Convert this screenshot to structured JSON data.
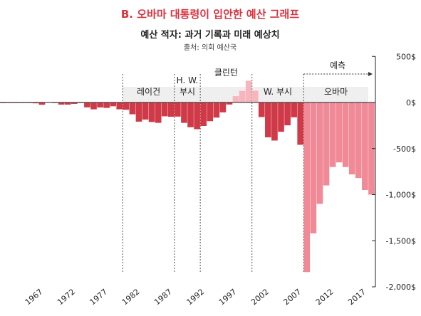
{
  "title": "B. 오바마 대통령이 입안한 예산 그래프",
  "subtitle": "예산 적자: 과거 기록과 미래 예상치",
  "source": "출처: 의회 예산국",
  "forecast_label": "예측",
  "colors": {
    "title": "#d8323e",
    "bar_past": "#d03a48",
    "bar_forecast": "#f08a97",
    "surplus": "#f7b6bd",
    "axis": "#222222"
  },
  "chart_data": {
    "type": "bar",
    "title": "예산 적자: 과거 기록과 미래 예상치",
    "ylabel": "",
    "ylim": [
      -2000,
      500
    ],
    "yticks": [
      500,
      0,
      -500,
      -1000,
      -1500,
      -2000
    ],
    "ytick_labels": [
      "500$",
      "0$",
      "-500$",
      "-1,000$",
      "-1,500$",
      "-2,000$"
    ],
    "xtick_labels": [
      "1967",
      "1972",
      "1977",
      "1982",
      "1987",
      "1992",
      "1997",
      "2002",
      "2007",
      "2012",
      "2017"
    ],
    "xtick_years": [
      1967,
      1972,
      1977,
      1982,
      1987,
      1992,
      1997,
      2002,
      2007,
      2012,
      2017
    ],
    "years": [
      1962,
      1963,
      1964,
      1965,
      1966,
      1967,
      1968,
      1969,
      1970,
      1971,
      1972,
      1973,
      1974,
      1975,
      1976,
      1977,
      1978,
      1979,
      1980,
      1981,
      1982,
      1983,
      1984,
      1985,
      1986,
      1987,
      1988,
      1989,
      1990,
      1991,
      1992,
      1993,
      1994,
      1995,
      1996,
      1997,
      1998,
      1999,
      2000,
      2001,
      2002,
      2003,
      2004,
      2005,
      2006,
      2007,
      2008,
      2009,
      2010,
      2011,
      2012,
      2013,
      2014,
      2015,
      2016,
      2017,
      2018,
      2019
    ],
    "values": [
      -7,
      -5,
      -6,
      -1,
      -4,
      -9,
      -25,
      3,
      -3,
      -23,
      -23,
      -15,
      -6,
      -53,
      -74,
      -54,
      -59,
      -41,
      -74,
      -79,
      -128,
      -208,
      -185,
      -212,
      -221,
      -150,
      -155,
      -153,
      -221,
      -269,
      -290,
      -255,
      -203,
      -164,
      -107,
      -22,
      69,
      126,
      236,
      128,
      -158,
      -378,
      -413,
      -318,
      -248,
      -161,
      -459,
      -1840,
      -1420,
      -1100,
      -900,
      -700,
      -650,
      -700,
      -780,
      -820,
      -950,
      -1000
    ],
    "forecast_from": 2009,
    "eras": [
      {
        "label": "레이건",
        "start": 1981,
        "end": 1989
      },
      {
        "label": "H. W. 부시",
        "start": 1989,
        "end": 1993
      },
      {
        "label": "클린턴",
        "start": 1993,
        "end": 2001
      },
      {
        "label": "W. 부시",
        "start": 2001,
        "end": 2009
      },
      {
        "label": "오바마",
        "start": 2009,
        "end": 2019
      }
    ]
  }
}
